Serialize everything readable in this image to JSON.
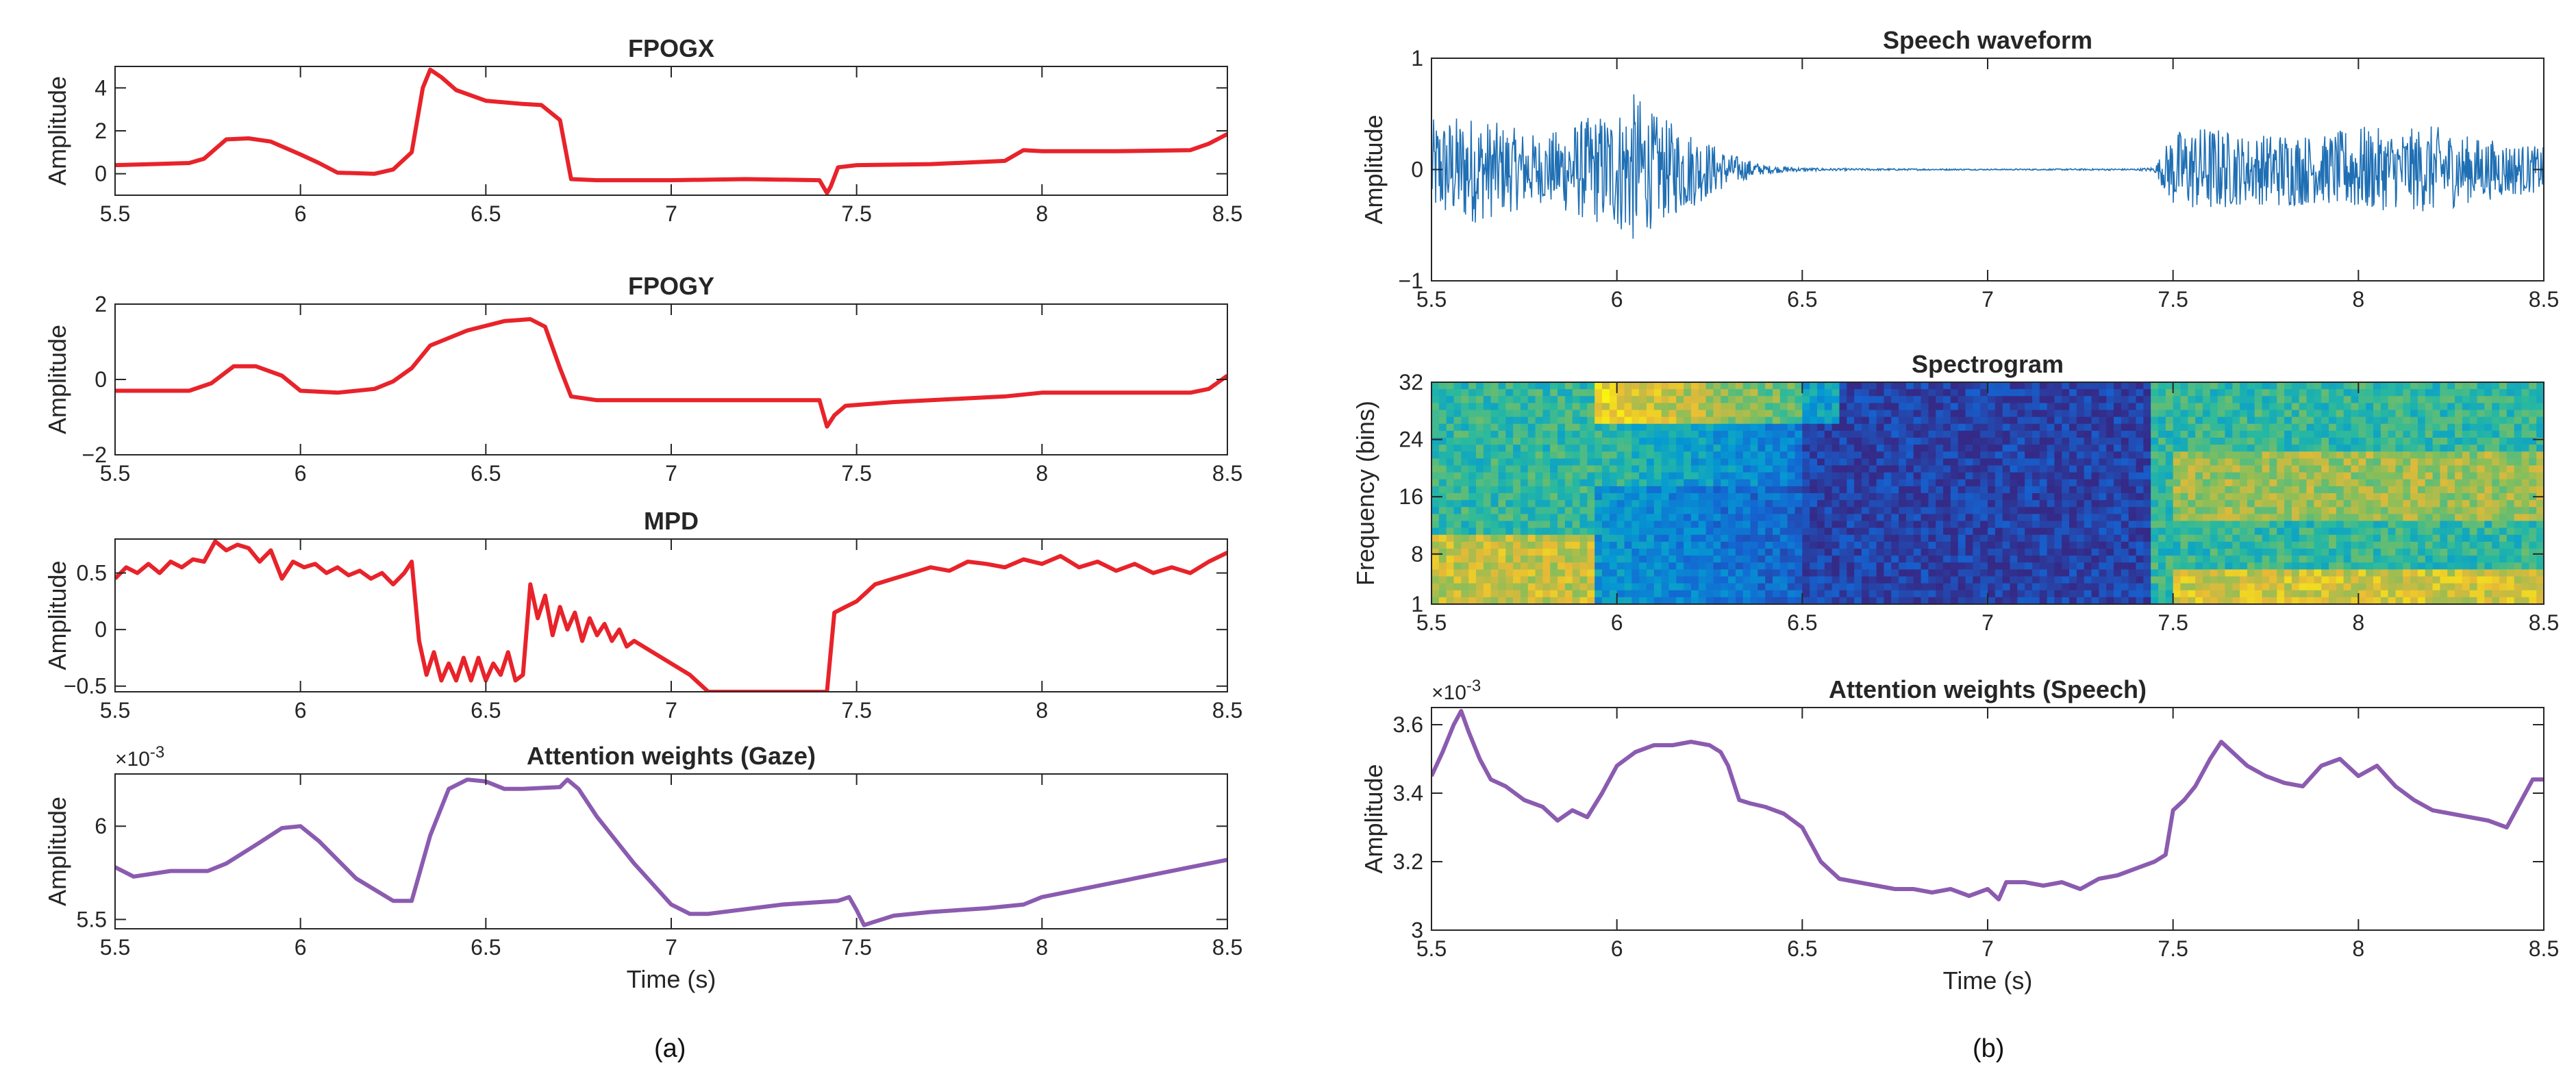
{
  "figure": {
    "xlabel": "Time (s)",
    "panel_labels": [
      "(a)",
      "(b)"
    ]
  },
  "colors": {
    "gaze_signal": "#e8232a",
    "attention": "#8b5bb0",
    "waveform": "#1f6fb4",
    "axis": "#262626",
    "text": "#262626"
  },
  "chart_data": [
    {
      "id": "fpogx",
      "type": "line",
      "title": "FPOGX",
      "ylabel": "Amplitude",
      "xlim": [
        5.5,
        8.5
      ],
      "ylim": [
        -1,
        5
      ],
      "xticks": [
        5.5,
        6,
        6.5,
        7,
        7.5,
        8,
        8.5
      ],
      "xtick_labels": [
        "5.5",
        "6",
        "6.5",
        "7",
        "7.5",
        "8",
        "8.5"
      ],
      "yticks": [
        0,
        2,
        4
      ],
      "ytick_labels": [
        "0",
        "2",
        "4"
      ],
      "exponent": "",
      "series": [
        {
          "name": "FPOGX",
          "x": [
            5.5,
            5.6,
            5.7,
            5.74,
            5.8,
            5.86,
            5.92,
            6.0,
            6.05,
            6.1,
            6.2,
            6.25,
            6.3,
            6.33,
            6.35,
            6.38,
            6.42,
            6.5,
            6.6,
            6.65,
            6.7,
            6.73,
            6.8,
            6.9,
            7.0,
            7.2,
            7.4,
            7.42,
            7.43,
            7.45,
            7.5,
            7.7,
            7.9,
            7.95,
            8.0,
            8.2,
            8.4,
            8.45,
            8.5
          ],
          "y": [
            0.4,
            0.45,
            0.5,
            0.7,
            1.6,
            1.65,
            1.5,
            0.9,
            0.5,
            0.05,
            0.0,
            0.2,
            1.0,
            4.0,
            4.85,
            4.5,
            3.9,
            3.4,
            3.25,
            3.2,
            2.5,
            -0.25,
            -0.3,
            -0.3,
            -0.3,
            -0.25,
            -0.3,
            -0.9,
            -0.6,
            0.3,
            0.4,
            0.45,
            0.6,
            1.1,
            1.05,
            1.05,
            1.1,
            1.4,
            1.85
          ]
        }
      ]
    },
    {
      "id": "fpogy",
      "type": "line",
      "title": "FPOGY",
      "ylabel": "Amplitude",
      "xlim": [
        5.5,
        8.5
      ],
      "ylim": [
        -2,
        2
      ],
      "xticks": [
        5.5,
        6,
        6.5,
        7,
        7.5,
        8,
        8.5
      ],
      "xtick_labels": [
        "5.5",
        "6",
        "6.5",
        "7",
        "7.5",
        "8",
        "8.5"
      ],
      "yticks": [
        -2,
        0,
        2
      ],
      "ytick_labels": [
        "−2",
        "0",
        "2"
      ],
      "exponent": "",
      "series": [
        {
          "name": "FPOGY",
          "x": [
            5.5,
            5.7,
            5.76,
            5.82,
            5.88,
            5.95,
            6.0,
            6.1,
            6.2,
            6.25,
            6.3,
            6.35,
            6.45,
            6.55,
            6.62,
            6.66,
            6.7,
            6.73,
            6.8,
            7.0,
            7.2,
            7.4,
            7.42,
            7.44,
            7.47,
            7.6,
            7.8,
            7.9,
            8.0,
            8.2,
            8.4,
            8.45,
            8.5
          ],
          "y": [
            -0.3,
            -0.3,
            -0.1,
            0.35,
            0.35,
            0.1,
            -0.3,
            -0.35,
            -0.25,
            -0.05,
            0.3,
            0.9,
            1.3,
            1.55,
            1.6,
            1.4,
            0.3,
            -0.45,
            -0.55,
            -0.55,
            -0.55,
            -0.55,
            -1.25,
            -0.95,
            -0.7,
            -0.6,
            -0.5,
            -0.45,
            -0.35,
            -0.35,
            -0.35,
            -0.25,
            0.1
          ]
        }
      ]
    },
    {
      "id": "mpd",
      "type": "line",
      "title": "MPD",
      "ylabel": "Amplitude",
      "xlim": [
        5.5,
        8.5
      ],
      "ylim": [
        -0.55,
        0.8
      ],
      "xticks": [
        5.5,
        6,
        6.5,
        7,
        7.5,
        8,
        8.5
      ],
      "xtick_labels": [
        "5.5",
        "6",
        "6.5",
        "7",
        "7.5",
        "8",
        "8.5"
      ],
      "yticks": [
        -0.5,
        0,
        0.5
      ],
      "ytick_labels": [
        "−0.5",
        "0",
        "0.5"
      ],
      "exponent": "",
      "series": [
        {
          "name": "MPD",
          "x": [
            5.5,
            5.53,
            5.56,
            5.59,
            5.62,
            5.65,
            5.68,
            5.71,
            5.74,
            5.77,
            5.8,
            5.83,
            5.86,
            5.89,
            5.92,
            5.95,
            5.98,
            6.01,
            6.04,
            6.07,
            6.1,
            6.13,
            6.16,
            6.19,
            6.22,
            6.25,
            6.28,
            6.3,
            6.32,
            6.34,
            6.36,
            6.38,
            6.4,
            6.42,
            6.44,
            6.46,
            6.48,
            6.5,
            6.52,
            6.54,
            6.56,
            6.58,
            6.6,
            6.62,
            6.64,
            6.66,
            6.68,
            6.7,
            6.72,
            6.74,
            6.76,
            6.78,
            6.8,
            6.82,
            6.84,
            6.86,
            6.88,
            6.9,
            6.95,
            7.0,
            7.05,
            7.1,
            7.42,
            7.44,
            7.47,
            7.5,
            7.55,
            7.6,
            7.65,
            7.7,
            7.75,
            7.8,
            7.85,
            7.9,
            7.95,
            8.0,
            8.05,
            8.1,
            8.15,
            8.2,
            8.25,
            8.3,
            8.35,
            8.4,
            8.45,
            8.5
          ],
          "y": [
            0.45,
            0.55,
            0.5,
            0.58,
            0.5,
            0.6,
            0.55,
            0.62,
            0.6,
            0.78,
            0.7,
            0.75,
            0.72,
            0.6,
            0.7,
            0.45,
            0.6,
            0.55,
            0.58,
            0.5,
            0.55,
            0.48,
            0.52,
            0.45,
            0.5,
            0.4,
            0.5,
            0.6,
            -0.1,
            -0.4,
            -0.2,
            -0.45,
            -0.3,
            -0.45,
            -0.25,
            -0.45,
            -0.25,
            -0.45,
            -0.3,
            -0.4,
            -0.2,
            -0.45,
            -0.4,
            0.4,
            0.1,
            0.3,
            -0.05,
            0.2,
            0.0,
            0.15,
            -0.1,
            0.1,
            -0.05,
            0.05,
            -0.1,
            0.0,
            -0.15,
            -0.1,
            -0.2,
            -0.3,
            -0.4,
            -0.55,
            -0.55,
            0.15,
            0.2,
            0.25,
            0.4,
            0.45,
            0.5,
            0.55,
            0.52,
            0.6,
            0.58,
            0.55,
            0.62,
            0.58,
            0.65,
            0.55,
            0.6,
            0.52,
            0.58,
            0.5,
            0.55,
            0.5,
            0.6,
            0.68
          ]
        }
      ]
    },
    {
      "id": "att_gaze",
      "type": "line",
      "title": "Attention weights (Gaze)",
      "ylabel": "Amplitude",
      "xlim": [
        5.5,
        8.5
      ],
      "ylim": [
        5.45,
        6.28
      ],
      "xticks": [
        5.5,
        6,
        6.5,
        7,
        7.5,
        8,
        8.5
      ],
      "xtick_labels": [
        "5.5",
        "6",
        "6.5",
        "7",
        "7.5",
        "8",
        "8.5"
      ],
      "yticks": [
        5.5,
        6
      ],
      "ytick_labels": [
        "5.5",
        "6"
      ],
      "exponent": "×10^-3",
      "series": [
        {
          "name": "Attention (Gaze)",
          "x": [
            5.5,
            5.55,
            5.65,
            5.75,
            5.8,
            5.88,
            5.95,
            6.0,
            6.05,
            6.15,
            6.25,
            6.3,
            6.35,
            6.4,
            6.45,
            6.5,
            6.55,
            6.6,
            6.7,
            6.72,
            6.75,
            6.8,
            6.9,
            7.0,
            7.05,
            7.1,
            7.3,
            7.45,
            7.48,
            7.5,
            7.52,
            7.6,
            7.7,
            7.85,
            7.95,
            8.0,
            8.2,
            8.4,
            8.5
          ],
          "y": [
            5.78,
            5.73,
            5.76,
            5.76,
            5.8,
            5.9,
            5.99,
            6.0,
            5.92,
            5.72,
            5.6,
            5.6,
            5.95,
            6.2,
            6.25,
            6.24,
            6.2,
            6.2,
            6.21,
            6.25,
            6.2,
            6.05,
            5.8,
            5.58,
            5.53,
            5.53,
            5.58,
            5.6,
            5.62,
            5.55,
            5.47,
            5.52,
            5.54,
            5.56,
            5.58,
            5.62,
            5.7,
            5.78,
            5.82
          ]
        }
      ]
    },
    {
      "id": "waveform",
      "type": "line",
      "title": "Speech waveform",
      "ylabel": "Amplitude",
      "xlim": [
        5.5,
        8.5
      ],
      "ylim": [
        -1,
        1
      ],
      "xticks": [
        5.5,
        6,
        6.5,
        7,
        7.5,
        8,
        8.5
      ],
      "xtick_labels": [
        "5.5",
        "6",
        "6.5",
        "7",
        "7.5",
        "8",
        "8.5"
      ],
      "yticks": [
        -1,
        0,
        1
      ],
      "ytick_labels": [
        "−1",
        "0",
        "1"
      ],
      "exponent": "",
      "envelope": {
        "x": [
          5.5,
          5.6,
          5.7,
          5.8,
          5.9,
          6.0,
          6.05,
          6.1,
          6.2,
          6.3,
          6.4,
          6.5,
          6.6,
          7.0,
          7.4,
          7.45,
          7.5,
          7.6,
          7.7,
          7.8,
          7.9,
          8.0,
          8.1,
          8.2,
          8.3,
          8.4,
          8.5
        ],
        "amp": [
          0.45,
          0.5,
          0.4,
          0.3,
          0.45,
          0.55,
          0.7,
          0.5,
          0.35,
          0.15,
          0.04,
          0.015,
          0.01,
          0.005,
          0.008,
          0.02,
          0.35,
          0.4,
          0.3,
          0.35,
          0.3,
          0.4,
          0.35,
          0.4,
          0.3,
          0.25,
          0.2
        ]
      }
    },
    {
      "id": "spectrogram",
      "type": "heatmap",
      "title": "Spectrogram",
      "ylabel": "Frequency (bins)",
      "xlim": [
        5.5,
        8.5
      ],
      "ylim": [
        1,
        32
      ],
      "xticks": [
        5.5,
        6,
        6.5,
        7,
        7.5,
        8,
        8.5
      ],
      "xtick_labels": [
        "5.5",
        "6",
        "6.5",
        "7",
        "7.5",
        "8",
        "8.5"
      ],
      "yticks": [
        1,
        8,
        16,
        24,
        32
      ],
      "ytick_labels": [
        "1",
        "8",
        "16",
        "24",
        "32"
      ],
      "exponent": ""
    },
    {
      "id": "att_speech",
      "type": "line",
      "title": "Attention weights (Speech)",
      "ylabel": "Amplitude",
      "xlim": [
        5.5,
        8.5
      ],
      "ylim": [
        3.0,
        3.65
      ],
      "xticks": [
        5.5,
        6,
        6.5,
        7,
        7.5,
        8,
        8.5
      ],
      "xtick_labels": [
        "5.5",
        "6",
        "6.5",
        "7",
        "7.5",
        "8",
        "8.5"
      ],
      "yticks": [
        3,
        3.2,
        3.4,
        3.6
      ],
      "ytick_labels": [
        "3",
        "3.2",
        "3.4",
        "3.6"
      ],
      "exponent": "×10^-3",
      "series": [
        {
          "name": "Attention (Speech)",
          "x": [
            5.5,
            5.53,
            5.56,
            5.58,
            5.6,
            5.63,
            5.66,
            5.7,
            5.75,
            5.8,
            5.84,
            5.88,
            5.92,
            5.96,
            6.0,
            6.05,
            6.1,
            6.15,
            6.2,
            6.25,
            6.28,
            6.3,
            6.33,
            6.36,
            6.4,
            6.45,
            6.5,
            6.55,
            6.6,
            6.65,
            6.7,
            6.75,
            6.8,
            6.85,
            6.9,
            6.95,
            7.0,
            7.03,
            7.05,
            7.1,
            7.15,
            7.2,
            7.25,
            7.3,
            7.35,
            7.4,
            7.45,
            7.48,
            7.5,
            7.53,
            7.56,
            7.6,
            7.63,
            7.66,
            7.7,
            7.75,
            7.8,
            7.85,
            7.9,
            7.95,
            8.0,
            8.05,
            8.1,
            8.15,
            8.2,
            8.25,
            8.3,
            8.35,
            8.4,
            8.44,
            8.47,
            8.5
          ],
          "y": [
            3.45,
            3.52,
            3.6,
            3.64,
            3.58,
            3.5,
            3.44,
            3.42,
            3.38,
            3.36,
            3.32,
            3.35,
            3.33,
            3.4,
            3.48,
            3.52,
            3.54,
            3.54,
            3.55,
            3.54,
            3.52,
            3.48,
            3.38,
            3.37,
            3.36,
            3.34,
            3.3,
            3.2,
            3.15,
            3.14,
            3.13,
            3.12,
            3.12,
            3.11,
            3.12,
            3.1,
            3.12,
            3.09,
            3.14,
            3.14,
            3.13,
            3.14,
            3.12,
            3.15,
            3.16,
            3.18,
            3.2,
            3.22,
            3.35,
            3.38,
            3.42,
            3.5,
            3.55,
            3.52,
            3.48,
            3.45,
            3.43,
            3.42,
            3.48,
            3.5,
            3.45,
            3.48,
            3.42,
            3.38,
            3.35,
            3.34,
            3.33,
            3.32,
            3.3,
            3.38,
            3.44,
            3.44
          ]
        }
      ]
    }
  ]
}
